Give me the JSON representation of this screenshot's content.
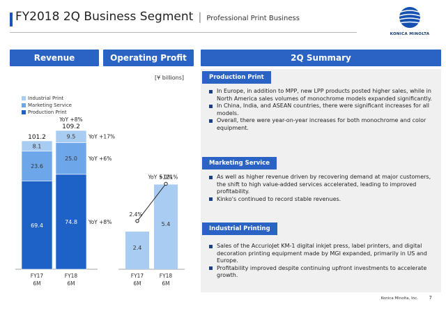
{
  "header": {
    "title": "FY2018 2Q Business Segment",
    "separator": "|",
    "subtitle": "Professional Print Business",
    "logo_text": "KONICA MINOLTA"
  },
  "panels": {
    "revenue": "Revenue",
    "operating_profit": "Operating Profit",
    "summary": "2Q Summary"
  },
  "unit": "[¥ billions]",
  "legend": [
    {
      "label": "Industrial Print",
      "color": "#a9ccf2"
    },
    {
      "label": "Marketing Service",
      "color": "#6ea6ea"
    },
    {
      "label": "Production Print",
      "color": "#1e62c8"
    }
  ],
  "chart_data": [
    {
      "type": "bar",
      "title": "Revenue",
      "categories": [
        "FY17 6M",
        "FY18 6M"
      ],
      "stacked": true,
      "series": [
        {
          "name": "Production Print",
          "values": [
            69.4,
            74.8
          ],
          "color": "#1e62c8",
          "yoy": "YoY +8%"
        },
        {
          "name": "Marketing Service",
          "values": [
            23.6,
            25.0
          ],
          "color": "#6ea6ea",
          "yoy": "YoY +6%"
        },
        {
          "name": "Industrial Print",
          "values": [
            8.1,
            9.5
          ],
          "color": "#a9ccf2",
          "yoy": "YoY +17%"
        }
      ],
      "totals": [
        101.2,
        109.2
      ],
      "total_yoy": "YoY +8%"
    },
    {
      "type": "bar",
      "title": "Operating Profit",
      "categories": [
        "FY17 6M",
        "FY18 6M"
      ],
      "values": [
        2.4,
        5.4
      ],
      "color": "#a9ccf2",
      "margin_line": {
        "values_pct": [
          2.4,
          5.0
        ],
        "labels": [
          "2.4%",
          "5.0%"
        ]
      },
      "yoy": "YoY +121%"
    }
  ],
  "categories_display": [
    {
      "line1": "FY17",
      "line2": "6M"
    },
    {
      "line1": "FY18",
      "line2": "6M"
    }
  ],
  "sections": [
    {
      "title": "Production Print",
      "bullets": [
        "In Europe, in addition to MPP, new LPP products posted higher sales, while in North America sales volumes of monochrome models expanded significantly.",
        "In China, India, and ASEAN countries, there were significant increases for all models.",
        "Overall, there were year-on-year increases for both monochrome and color equipment."
      ]
    },
    {
      "title": "Marketing Service",
      "bullets": [
        "As well as higher revenue driven by recovering demand at major customers, the shift to high value-added services accelerated, leading to improved profitability.",
        "Kinko's continued to record stable revenues."
      ]
    },
    {
      "title": "Industrial Printing",
      "bullets": [
        "Sales of the AccurioJet KM-1 digital inkjet press, label printers, and digital decoration printing equipment made by MGI expanded, primarily in US and Europe.",
        "Profitability improved despite continuing upfront investments to accelerate growth."
      ]
    }
  ],
  "footer": {
    "company": "Konica Minolta, Inc.",
    "page": "7"
  }
}
